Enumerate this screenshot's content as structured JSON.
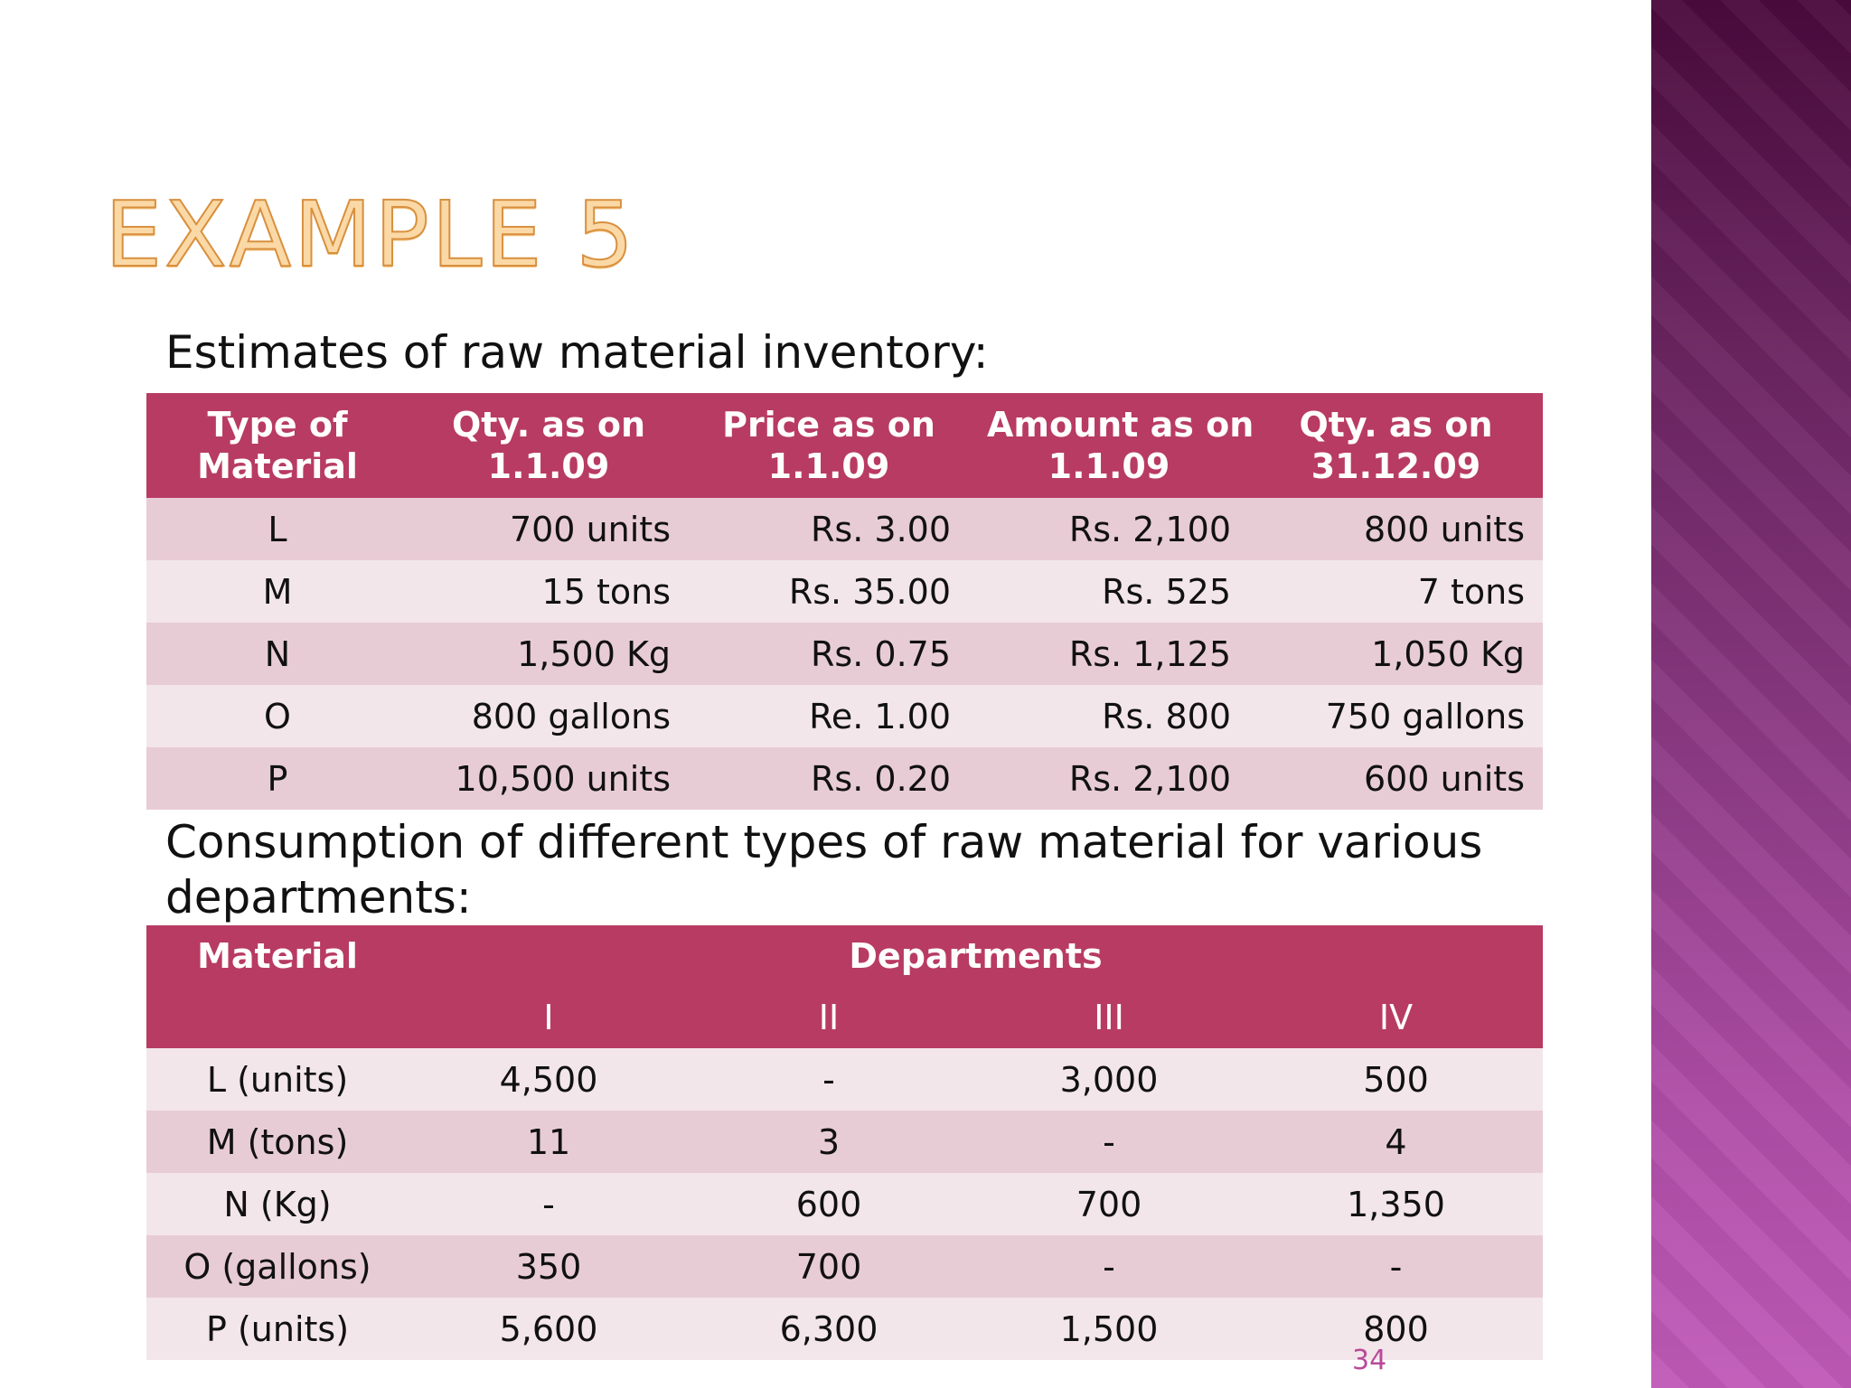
{
  "title": "EXAMPLE 5",
  "caption1": "Estimates of raw material inventory:",
  "table1": {
    "headers": [
      [
        "Type of",
        "Material"
      ],
      [
        "Qty. as on",
        "1.1.09"
      ],
      [
        "Price as on",
        "1.1.09"
      ],
      [
        "Amount as on",
        "1.1.09"
      ],
      [
        "Qty. as on",
        "31.12.09"
      ]
    ],
    "rows": [
      [
        "L",
        "700 units",
        "Rs. 3.00",
        "Rs. 2,100",
        "800 units"
      ],
      [
        "M",
        "15 tons",
        "Rs. 35.00",
        "Rs. 525",
        "7 tons"
      ],
      [
        "N",
        "1,500 Kg",
        "Rs. 0.75",
        "Rs. 1,125",
        "1,050 Kg"
      ],
      [
        "O",
        "800 gallons",
        "Re. 1.00",
        "Rs. 800",
        "750 gallons"
      ],
      [
        "P",
        "10,500 units",
        "Rs. 0.20",
        "Rs. 2,100",
        "600 units"
      ]
    ]
  },
  "caption2": "Consumption of different types of raw material for various departments:",
  "table2": {
    "header_material": "Material",
    "header_departments": "Departments",
    "departments": [
      "I",
      "II",
      "III",
      "IV"
    ],
    "rows": [
      [
        "L (units)",
        "4,500",
        "-",
        "3,000",
        "500"
      ],
      [
        "M (tons)",
        "11",
        "3",
        "-",
        "4"
      ],
      [
        "N (Kg)",
        "-",
        "600",
        "700",
        "1,350"
      ],
      [
        "O (gallons)",
        "350",
        "700",
        "-",
        "-"
      ],
      [
        "P (units)",
        "5,600",
        "6,300",
        "1,500",
        "800"
      ]
    ]
  },
  "page_number": "34",
  "colors": {
    "header_bg": "#b83b63",
    "row_dark": "#e8ccd5",
    "row_light": "#f3e6ea",
    "title_fill": "#fbd9a6",
    "title_outline": "#d8903f",
    "side_band": "#8e3b86"
  }
}
